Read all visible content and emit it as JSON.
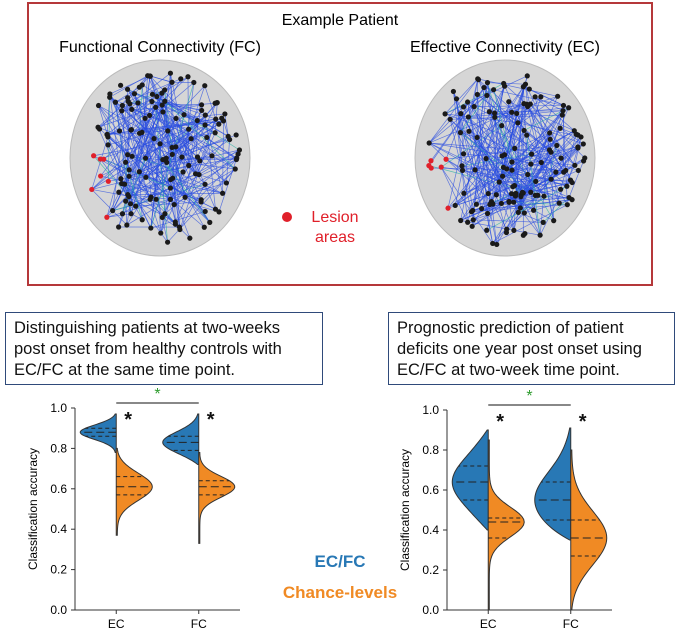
{
  "header": {
    "title": "Example Patient",
    "panels": [
      "Functional Connectivity (FC)",
      "Effective Connectivity (EC)"
    ],
    "lesion_label": "Lesion areas"
  },
  "captions": [
    "Distinguishing patients at two-weeks post onset from healthy controls with EC/FC at the same time point.",
    "Prognostic prediction of patient deficits one year post onset using EC/FC at two-week time point."
  ],
  "chart_data": [
    {
      "type": "violin",
      "ylabel": "Classification accuracy",
      "categories": [
        "EC",
        "FC"
      ],
      "series": [
        {
          "name": "EC/FC",
          "color": "#2878b5",
          "values": [
            {
              "min": 0.78,
              "q1": 0.86,
              "median": 0.88,
              "q3": 0.9,
              "max": 0.97
            },
            {
              "min": 0.72,
              "q1": 0.79,
              "median": 0.83,
              "q3": 0.86,
              "max": 0.97
            }
          ]
        },
        {
          "name": "Chance-levels",
          "color": "#f08a24",
          "values": [
            {
              "min": 0.37,
              "q1": 0.57,
              "median": 0.61,
              "q3": 0.66,
              "max": 0.8
            },
            {
              "min": 0.33,
              "q1": 0.57,
              "median": 0.61,
              "q3": 0.64,
              "max": 0.78
            }
          ]
        }
      ],
      "ylim": [
        0,
        1
      ],
      "yticks": [
        {
          "value": 0,
          "label": "0.0"
        },
        {
          "value": 0.2,
          "label": "0.2"
        },
        {
          "value": 0.4,
          "label": "0.4"
        },
        {
          "value": 0.6,
          "label": "0.6"
        },
        {
          "value": 0.8,
          "label": "0.8"
        },
        {
          "value": 1,
          "label": "1.0"
        }
      ],
      "significance": {
        "label": "*",
        "color": "#2e9b2e"
      },
      "markers": [
        "*",
        "*"
      ]
    },
    {
      "type": "violin",
      "ylabel": "Classification accuracy",
      "categories": [
        "EC",
        "FC"
      ],
      "series": [
        {
          "color": "#2878b5",
          "values": [
            {
              "min": 0.4,
              "q1": 0.55,
              "median": 0.64,
              "q3": 0.72,
              "max": 0.9
            },
            {
              "min": 0.35,
              "q1": 0.45,
              "median": 0.55,
              "q3": 0.64,
              "max": 0.91
            }
          ]
        },
        {
          "color": "#f08a24",
          "values": [
            {
              "min": 0.0,
              "q1": 0.36,
              "median": 0.44,
              "q3": 0.46,
              "max": 0.85
            },
            {
              "min": 0.0,
              "q1": 0.27,
              "median": 0.36,
              "q3": 0.45,
              "max": 0.8
            }
          ]
        }
      ],
      "ylim": [
        0,
        1
      ],
      "yticks": [
        {
          "value": 0,
          "label": "0.0"
        },
        {
          "value": 0.2,
          "label": "0.2"
        },
        {
          "value": 0.4,
          "label": "0.4"
        },
        {
          "value": 0.6,
          "label": "0.6"
        },
        {
          "value": 0.8,
          "label": "0.8"
        },
        {
          "value": 1,
          "label": "1.0"
        }
      ],
      "significance": {
        "label": "*",
        "color": "#2e9b2e"
      },
      "markers": [
        "*",
        "*"
      ]
    }
  ]
}
